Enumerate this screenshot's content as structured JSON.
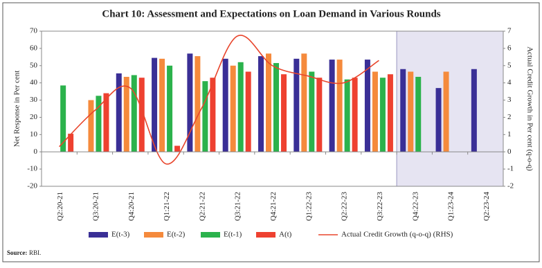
{
  "chart_data": {
    "type": "bar",
    "title": "Chart 10: Assessment and Expectations on Loan Demand in Various Rounds",
    "y_label": "Net Response in Per cent",
    "y2_label": "Actual Credit Growth in Per cent (q-o-q)",
    "source_label": "Source:",
    "source": "RBI.",
    "categories": [
      "Q2:20-21",
      "Q3:20-21",
      "Q4:20-21",
      "Q1:21-22",
      "Q2:21-22",
      "Q3:21-22",
      "Q4:21-22",
      "Q1:22-23",
      "Q2:22-23",
      "Q3:22-23",
      "Q4:22-23",
      "Q1:23-24",
      "Q2:23-24"
    ],
    "series": [
      {
        "name": "E(t-3)",
        "color": "#3a2f96",
        "values": [
          null,
          null,
          45.5,
          54.5,
          57,
          54,
          55.5,
          54,
          53.5,
          53.5,
          48,
          37,
          48
        ]
      },
      {
        "name": "E(t-2)",
        "color": "#f58a3c",
        "values": [
          null,
          30,
          43.5,
          54,
          55.5,
          50,
          57,
          57,
          53.5,
          46.5,
          46.5,
          46.5,
          null
        ]
      },
      {
        "name": "E(t-1)",
        "color": "#2bb24c",
        "values": [
          38.5,
          32.5,
          44.5,
          50,
          41,
          52,
          51.5,
          46.5,
          42,
          43,
          43.5,
          null,
          null
        ]
      },
      {
        "name": "A(t)",
        "color": "#ee4130",
        "values": [
          10.5,
          34,
          43,
          3.5,
          43,
          46.5,
          45,
          43,
          43,
          45,
          null,
          null,
          null
        ]
      },
      {
        "name": "Actual Credit Growth (q-o-q) (RHS)",
        "type": "line",
        "axis": "y2",
        "color": "#e8452c",
        "values": [
          0.3,
          2.4,
          3.7,
          -0.7,
          2.5,
          6.7,
          5.0,
          4.4,
          4.0,
          5.3,
          null,
          null,
          null
        ]
      }
    ],
    "ylim": [
      -20,
      70
    ],
    "yticks": [
      -20,
      -10,
      0,
      10,
      20,
      30,
      40,
      50,
      60,
      70
    ],
    "y2lim": [
      -2,
      7
    ],
    "y2ticks": [
      -2,
      -1,
      0,
      1,
      2,
      3,
      4,
      5,
      6,
      7
    ]
  }
}
